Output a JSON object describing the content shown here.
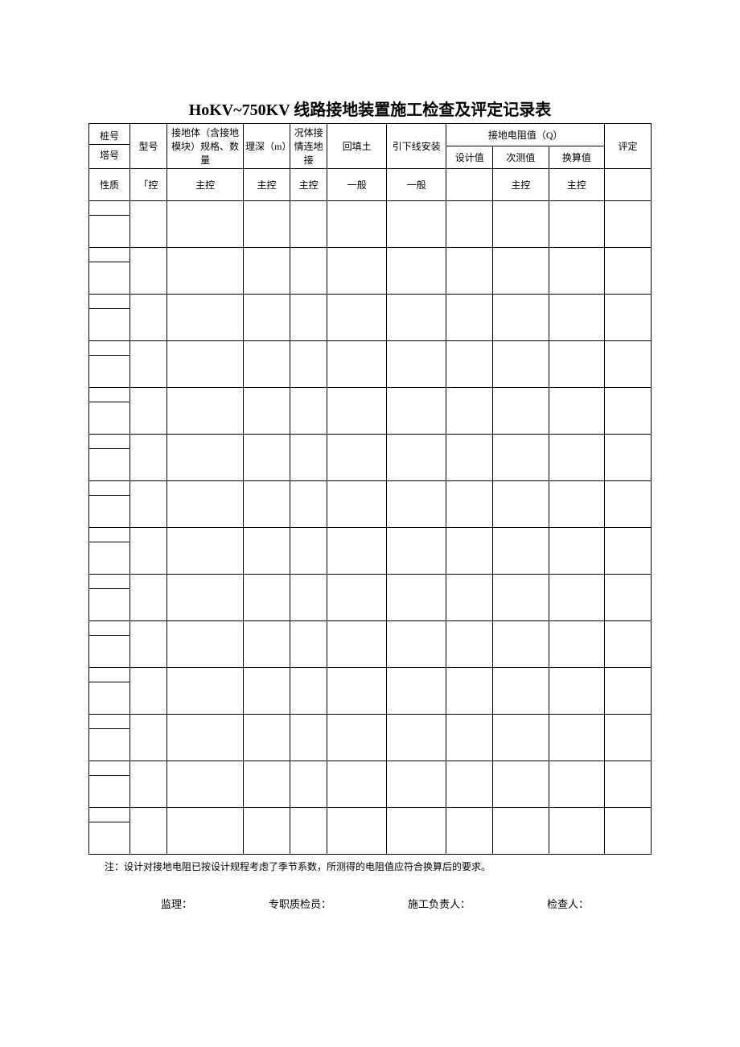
{
  "title": "HoKV~750KV 线路接地装置施工检查及评定记录表",
  "header": {
    "col1_top": "桩号",
    "col1_bottom": "塔号",
    "col2": "型号",
    "col3": "接地体（含接地模块）规格、数量",
    "col4": "理深（m）",
    "col5": "况体接情连地接",
    "col6": "回填土",
    "col7": "引下线安装",
    "col8_group": "接地电阻值（Q）",
    "col8": "设计值",
    "col9": "次测值",
    "col10": "换算值",
    "col11": "评定"
  },
  "nature_row": {
    "label": "性质",
    "c2": "「控",
    "c3": "主控",
    "c4": "主控",
    "c5": "主控",
    "c6": "一般",
    "c7": "一般",
    "c8": "",
    "c9": "主控",
    "c10": "主控",
    "c11": ""
  },
  "note": "注：设计对接地电阻已按设计规程考虑了季节系数，所测得的电阻值应符合换算后的要求。",
  "signatures": {
    "s1": "监理：",
    "s2": "专职质检员：",
    "s3": "施工负责人：",
    "s4": "检查人："
  },
  "data_row_count": 14,
  "styling": {
    "page_background": "#ffffff",
    "border_color": "#000000",
    "title_fontsize": 20,
    "cell_fontsize": 12,
    "note_fontsize": 12,
    "font_family": "SimSun"
  }
}
